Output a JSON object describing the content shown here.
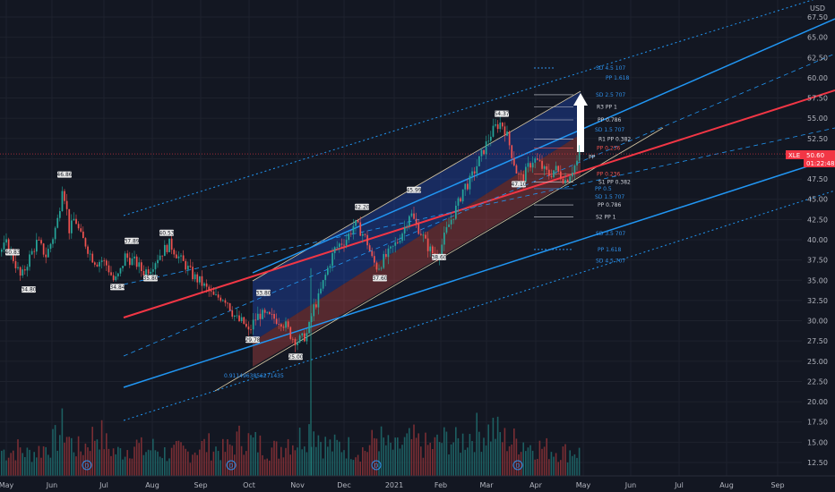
{
  "chart_data": {
    "type": "candlestick",
    "symbol": "XLE",
    "currency": "USD",
    "last_price": "50.60",
    "countdown": "01:22:48",
    "ylim": [
      10.5,
      70
    ],
    "y_ticks": [
      "67.50",
      "65.00",
      "62.50",
      "60.00",
      "57.50",
      "55.00",
      "52.50",
      "50.00",
      "47.50",
      "45.00",
      "42.50",
      "40.00",
      "37.50",
      "35.00",
      "32.50",
      "30.00",
      "27.50",
      "25.00",
      "22.50",
      "20.00",
      "17.50",
      "15.00",
      "12.50"
    ],
    "x_ticks": [
      "May",
      "Jun",
      "Jul",
      "Aug",
      "Sep",
      "Oct",
      "Nov",
      "Dec",
      "2021",
      "Feb",
      "Mar",
      "Apr",
      "May",
      "Jun",
      "Jul",
      "Aug",
      "Sep"
    ],
    "price_path": [
      [
        0,
        38.5
      ],
      [
        8,
        39.5
      ],
      [
        16,
        37.5
      ],
      [
        24,
        35.2
      ],
      [
        32,
        37.5
      ],
      [
        42,
        39.8
      ],
      [
        52,
        38.0
      ],
      [
        60,
        40.5
      ],
      [
        66,
        43.0
      ],
      [
        70,
        46.8
      ],
      [
        74,
        44.5
      ],
      [
        78,
        41.0
      ],
      [
        84,
        42.8
      ],
      [
        90,
        40.5
      ],
      [
        96,
        39.5
      ],
      [
        102,
        38.0
      ],
      [
        108,
        37.2
      ],
      [
        114,
        37.5
      ],
      [
        120,
        36.8
      ],
      [
        128,
        34.8
      ],
      [
        134,
        35.8
      ],
      [
        140,
        38.0
      ],
      [
        146,
        37.5
      ],
      [
        152,
        37.2
      ],
      [
        160,
        36.0
      ],
      [
        168,
        36.5
      ],
      [
        176,
        37.8
      ],
      [
        184,
        38.8
      ],
      [
        190,
        39.5
      ],
      [
        196,
        38.5
      ],
      [
        202,
        37.5
      ],
      [
        208,
        36.8
      ],
      [
        216,
        35.5
      ],
      [
        224,
        34.8
      ],
      [
        232,
        33.8
      ],
      [
        240,
        32.8
      ],
      [
        248,
        33.0
      ],
      [
        254,
        32.5
      ],
      [
        260,
        31.0
      ],
      [
        266,
        30.0
      ],
      [
        272,
        29.8
      ],
      [
        278,
        28.5
      ],
      [
        284,
        30.0
      ],
      [
        290,
        30.8
      ],
      [
        298,
        30.5
      ],
      [
        306,
        30.3
      ],
      [
        314,
        30.0
      ],
      [
        320,
        29.3
      ],
      [
        326,
        28.0
      ],
      [
        332,
        27.5
      ],
      [
        338,
        27.8
      ],
      [
        344,
        28.5
      ],
      [
        350,
        31.5
      ],
      [
        356,
        32.8
      ],
      [
        362,
        35.0
      ],
      [
        368,
        37.0
      ],
      [
        374,
        38.8
      ],
      [
        380,
        39.5
      ],
      [
        388,
        40.2
      ],
      [
        396,
        42.0
      ],
      [
        404,
        41.0
      ],
      [
        410,
        39.8
      ],
      [
        416,
        37.5
      ],
      [
        422,
        36.5
      ],
      [
        428,
        37.5
      ],
      [
        436,
        38.5
      ],
      [
        444,
        39.8
      ],
      [
        452,
        41.5
      ],
      [
        458,
        43.5
      ],
      [
        464,
        42.0
      ],
      [
        470,
        41.0
      ],
      [
        476,
        39.5
      ],
      [
        482,
        38.5
      ],
      [
        488,
        38.0
      ],
      [
        494,
        39.5
      ],
      [
        500,
        41.5
      ],
      [
        506,
        43.0
      ],
      [
        512,
        44.5
      ],
      [
        518,
        46.5
      ],
      [
        524,
        47.0
      ],
      [
        530,
        48.5
      ],
      [
        536,
        50.0
      ],
      [
        542,
        51.5
      ],
      [
        548,
        53.0
      ],
      [
        554,
        54.0
      ],
      [
        560,
        54.5
      ],
      [
        566,
        53.0
      ],
      [
        572,
        50.5
      ],
      [
        578,
        48.0
      ],
      [
        584,
        47.5
      ],
      [
        590,
        49.0
      ],
      [
        596,
        50.0
      ],
      [
        602,
        49.5
      ],
      [
        608,
        48.5
      ],
      [
        614,
        48.0
      ],
      [
        620,
        48.8
      ],
      [
        626,
        48.0
      ],
      [
        632,
        47.3
      ],
      [
        638,
        48.5
      ],
      [
        644,
        49.5
      ],
      [
        648,
        50.6
      ]
    ],
    "volume_profile": [
      [
        0,
        30
      ],
      [
        10,
        28
      ],
      [
        20,
        32
      ],
      [
        30,
        26
      ],
      [
        40,
        29
      ],
      [
        50,
        34
      ],
      [
        60,
        40
      ],
      [
        70,
        58
      ],
      [
        80,
        36
      ],
      [
        90,
        30
      ],
      [
        100,
        44
      ],
      [
        110,
        52
      ],
      [
        120,
        33
      ],
      [
        130,
        27
      ],
      [
        140,
        31
      ],
      [
        150,
        38
      ],
      [
        160,
        29
      ],
      [
        170,
        33
      ],
      [
        180,
        28
      ],
      [
        190,
        26
      ],
      [
        200,
        30
      ],
      [
        210,
        27
      ],
      [
        220,
        34
      ],
      [
        230,
        36
      ],
      [
        240,
        32
      ],
      [
        250,
        29
      ],
      [
        260,
        38
      ],
      [
        270,
        46
      ],
      [
        280,
        40
      ],
      [
        290,
        36
      ],
      [
        300,
        33
      ],
      [
        310,
        30
      ],
      [
        320,
        44
      ],
      [
        330,
        40
      ],
      [
        340,
        52
      ],
      [
        350,
        58
      ],
      [
        360,
        38
      ],
      [
        370,
        34
      ],
      [
        380,
        36
      ],
      [
        390,
        33
      ],
      [
        400,
        30
      ],
      [
        410,
        32
      ],
      [
        420,
        48
      ],
      [
        430,
        36
      ],
      [
        440,
        31
      ],
      [
        450,
        38
      ],
      [
        460,
        42
      ],
      [
        470,
        36
      ],
      [
        480,
        34
      ],
      [
        490,
        40
      ],
      [
        500,
        44
      ],
      [
        510,
        38
      ],
      [
        520,
        46
      ],
      [
        530,
        52
      ],
      [
        540,
        50
      ],
      [
        550,
        56
      ],
      [
        560,
        44
      ],
      [
        570,
        40
      ],
      [
        580,
        42
      ],
      [
        590,
        36
      ],
      [
        600,
        34
      ],
      [
        610,
        32
      ],
      [
        620,
        30
      ],
      [
        630,
        28
      ],
      [
        640,
        30
      ],
      [
        648,
        26
      ]
    ],
    "price_labels": [
      {
        "text": "40.83",
        "x": 14,
        "y": 38.4
      },
      {
        "text": "34.80",
        "x": 32,
        "y": 33.8
      },
      {
        "text": "46.86",
        "x": 72,
        "y": 48.0
      },
      {
        "text": "34.84",
        "x": 131,
        "y": 34.1
      },
      {
        "text": "37.89",
        "x": 147,
        "y": 39.8
      },
      {
        "text": "35.80",
        "x": 168,
        "y": 35.2
      },
      {
        "text": "40.53",
        "x": 186,
        "y": 40.8
      },
      {
        "text": "29.78",
        "x": 282,
        "y": 27.6
      },
      {
        "text": "33.80",
        "x": 294,
        "y": 33.4
      },
      {
        "text": "25.00",
        "x": 330,
        "y": 25.5
      },
      {
        "text": "42.20",
        "x": 404,
        "y": 44.0
      },
      {
        "text": "37.60",
        "x": 424,
        "y": 35.2
      },
      {
        "text": "45.99",
        "x": 462,
        "y": 46.1
      },
      {
        "text": "38.60",
        "x": 490,
        "y": 37.8
      },
      {
        "text": "54.37",
        "x": 560,
        "y": 55.5
      },
      {
        "text": "47.10",
        "x": 579,
        "y": 46.8
      }
    ],
    "pivot_labels": [
      {
        "text": "SD 4.5 107",
        "x": 665,
        "y": 61.2,
        "cls": "ann"
      },
      {
        "text": "PP 1.618",
        "x": 676,
        "y": 60.0,
        "cls": "ann"
      },
      {
        "text": "SD 2.5 707",
        "x": 665,
        "y": 57.9,
        "cls": "ann"
      },
      {
        "text": "R3 PP 1",
        "x": 666,
        "y": 56.4,
        "cls": "annw"
      },
      {
        "text": "PP 0.786",
        "x": 667,
        "y": 54.8,
        "cls": "annw"
      },
      {
        "text": "SD 1.5 707",
        "x": 664,
        "y": 53.6,
        "cls": "ann"
      },
      {
        "text": "R1 PP 0.382",
        "x": 668,
        "y": 52.4,
        "cls": "annw"
      },
      {
        "text": "PP 0.236",
        "x": 666,
        "y": 51.3,
        "cls": "annr"
      },
      {
        "text": "PP",
        "x": 657,
        "y": 50.2,
        "cls": "annw"
      },
      {
        "text": "PP 0.236",
        "x": 666,
        "y": 48.1,
        "cls": "annr"
      },
      {
        "text": "S1 PP 0.382",
        "x": 668,
        "y": 47.1,
        "cls": "annw"
      },
      {
        "text": "PP 0.5",
        "x": 664,
        "y": 46.3,
        "cls": "ann"
      },
      {
        "text": "SD 1.5 707",
        "x": 664,
        "y": 45.3,
        "cls": "ann"
      },
      {
        "text": "PP 0.786",
        "x": 667,
        "y": 44.3,
        "cls": "annw"
      },
      {
        "text": "S2 PP 1",
        "x": 665,
        "y": 42.8,
        "cls": "annw"
      },
      {
        "text": "SD 3.5 707",
        "x": 665,
        "y": 40.8,
        "cls": "ann"
      },
      {
        "text": "PP 1.618",
        "x": 667,
        "y": 38.8,
        "cls": "ann"
      },
      {
        "text": "SD 4.5 707",
        "x": 665,
        "y": 37.4,
        "cls": "ann"
      }
    ],
    "fib_label": "0.9114963856271435",
    "event_marker": "D",
    "colors": {
      "up": "#26a69a",
      "down": "#ef5350",
      "channel_fill": "#2962ff",
      "channel_fill_red": "#ef5350",
      "blue_line": "#2196f3",
      "red_line": "#f23645",
      "white": "#e0e3eb",
      "grid": "#1e222d"
    }
  }
}
